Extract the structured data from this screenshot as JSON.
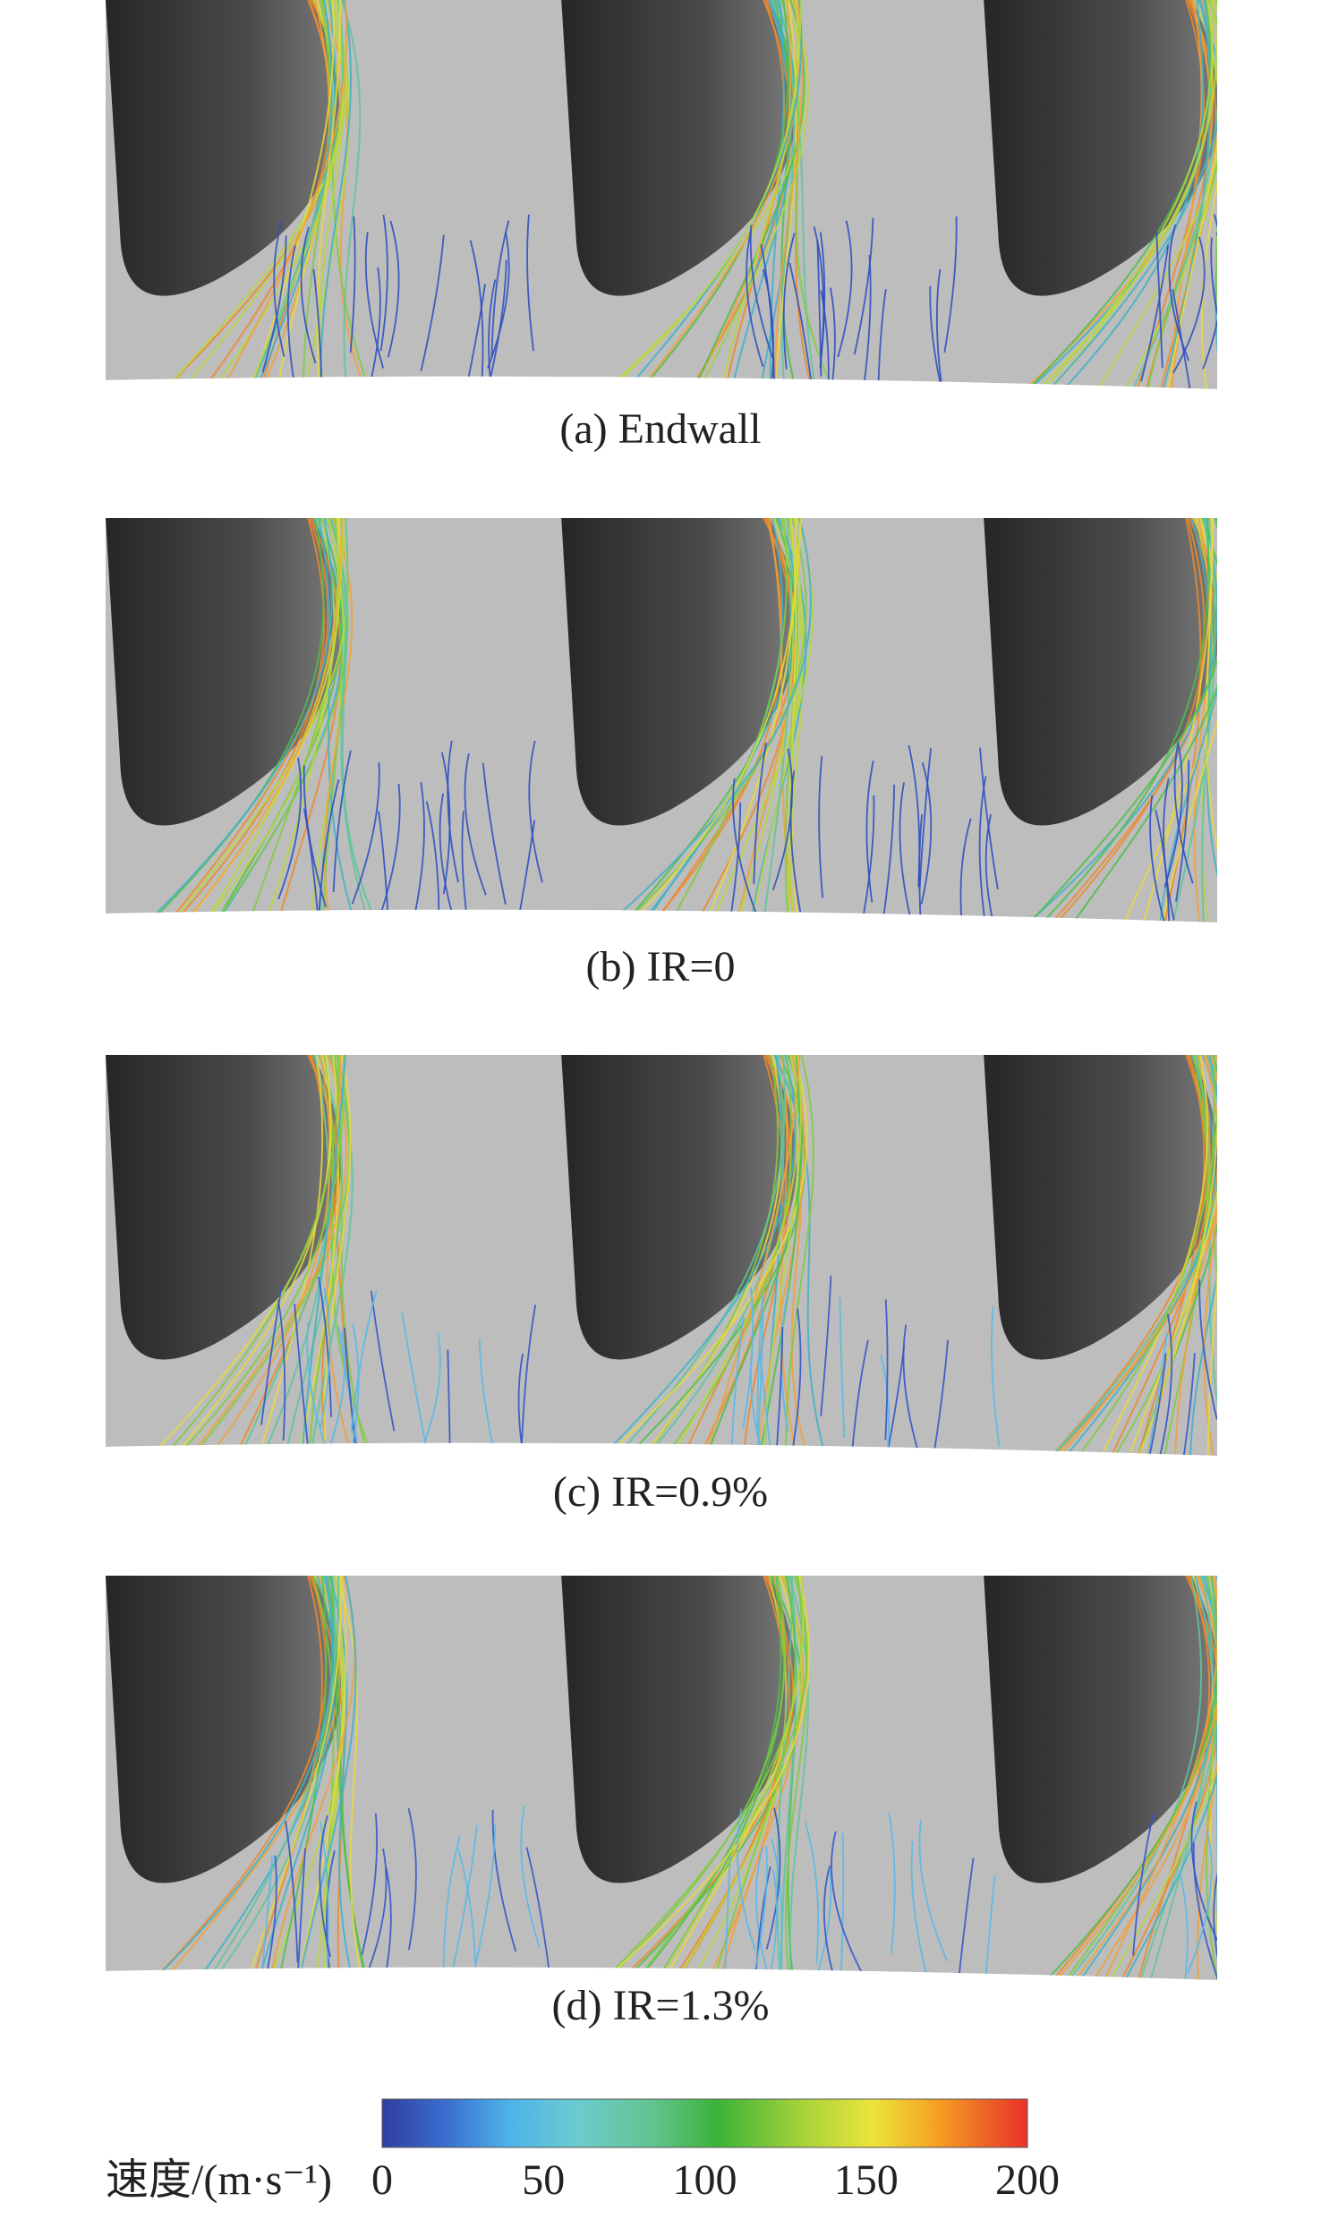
{
  "panels": [
    {
      "caption": "(a) Endwall"
    },
    {
      "caption": "(b) IR=0"
    },
    {
      "caption": "(c) IR=0.9%"
    },
    {
      "caption": "(d) IR=1.3%"
    }
  ],
  "colorbar": {
    "label": "速度/(m·s⁻¹)",
    "range": [
      0,
      200
    ],
    "ticks": [
      0,
      50,
      100,
      150,
      200
    ]
  }
}
